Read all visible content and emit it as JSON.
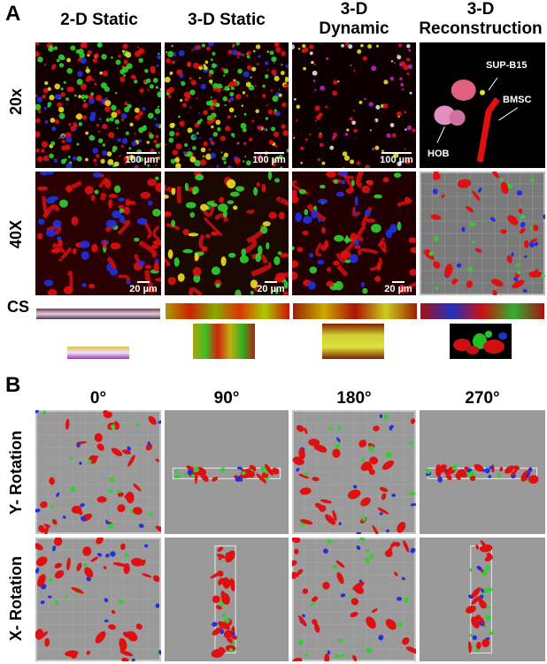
{
  "panel_a": {
    "label": "A",
    "columns": [
      {
        "line1": "2-D Static",
        "line2": ""
      },
      {
        "line1": "3-D Static",
        "line2": ""
      },
      {
        "line1": "3-D",
        "line2": "Dynamic"
      },
      {
        "line1": "3-D",
        "line2": "Reconstruction"
      }
    ],
    "rows": [
      "20x",
      "40X",
      "CS"
    ],
    "scale_bars": [
      "100 µm",
      "100 µm",
      "100 µm",
      "20 µm",
      "20 µm",
      "20 µm"
    ],
    "annotations": {
      "sup": "SUP-B15",
      "bmsc": "BMSC",
      "hob": "HOB"
    }
  },
  "panel_b": {
    "label": "B",
    "angles": [
      "0°",
      "90°",
      "180°",
      "270°"
    ],
    "rows": [
      "Y- Rotation",
      "X- Rotation"
    ]
  },
  "colors": {
    "red": "#e01010",
    "green": "#30d030",
    "blue": "#2030e0",
    "yellow": "#e8e020",
    "gray": "#9a9a9a"
  }
}
